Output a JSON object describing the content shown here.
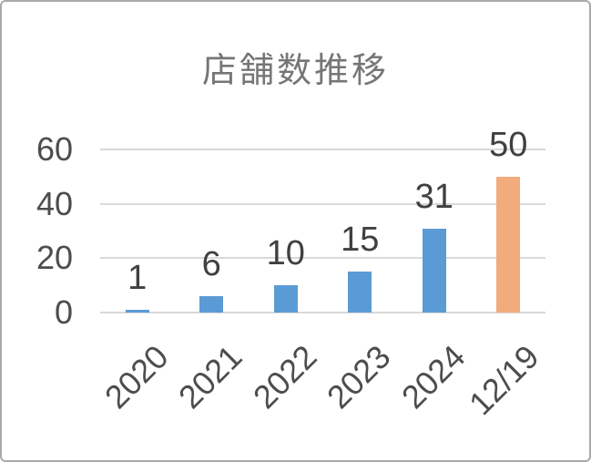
{
  "window": {
    "background": "#FFFFFF",
    "border_color": "#A9A9A9"
  },
  "text_colors": {
    "title": "#767676",
    "axis_labels": "#4D4D4D",
    "data_labels": "#404040"
  },
  "chart_data": {
    "type": "bar",
    "title": "店舗数推移",
    "categories": [
      "2020",
      "2021",
      "2022",
      "2023",
      "2024",
      "12/19"
    ],
    "values": [
      1,
      6,
      10,
      15,
      31,
      50
    ],
    "bar_colors": [
      "#5B9BD5",
      "#5B9BD5",
      "#5B9BD5",
      "#5B9BD5",
      "#5B9BD5",
      "#F2AB7C"
    ],
    "xlabel": "",
    "ylabel": "",
    "ylim": [
      0,
      60
    ],
    "yticks": [
      0,
      20,
      40,
      60
    ],
    "grid": true,
    "gridline_color": "#D9D9D9",
    "legend": "none",
    "x_label_rotation_deg": 45
  }
}
